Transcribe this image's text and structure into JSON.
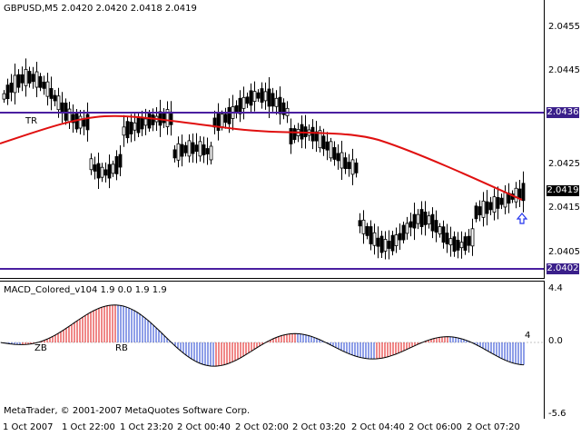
{
  "main_chart": {
    "title": "GBPUSD,M5  2.0420 2.0420 2.0418 2.0419",
    "y_ticks": [
      "2.0455",
      "2.0445",
      "2.0425",
      "2.0415",
      "2.0405"
    ],
    "price_tags": [
      {
        "label": "2.0436",
        "color": "#3a1f8a"
      },
      {
        "label": "2.0419",
        "color": "#000000"
      },
      {
        "label": "2.0402",
        "color": "#3a1f8a"
      }
    ],
    "marker": "TR",
    "colors": {
      "candle": "#000000",
      "ma_line": "#e01010",
      "level_line": "#4a1fa0",
      "arrow": "#2233ee"
    }
  },
  "indicator": {
    "title": "MACD_Colored_v104 1.9 0.0 1.9 1.9",
    "y_ticks": [
      "4.4",
      "0.0",
      "-5.6"
    ],
    "zero_label": "4",
    "markers": [
      "ZB",
      "RB"
    ],
    "watermark": "MetaTrader, © 2001-2007 MetaQuotes Software Corp.",
    "colors": {
      "up_bar": "#e01010",
      "down_bar": "#1f3fd0",
      "signal": "#000000"
    }
  },
  "x_axis": {
    "labels": [
      "1 Oct 2007",
      "1 Oct 22:00",
      "1 Oct 23:20",
      "2 Oct 00:40",
      "2 Oct 02:00",
      "2 Oct 03:20",
      "2 Oct 04:40",
      "2 Oct 06:00",
      "2 Oct 07:20"
    ]
  }
}
